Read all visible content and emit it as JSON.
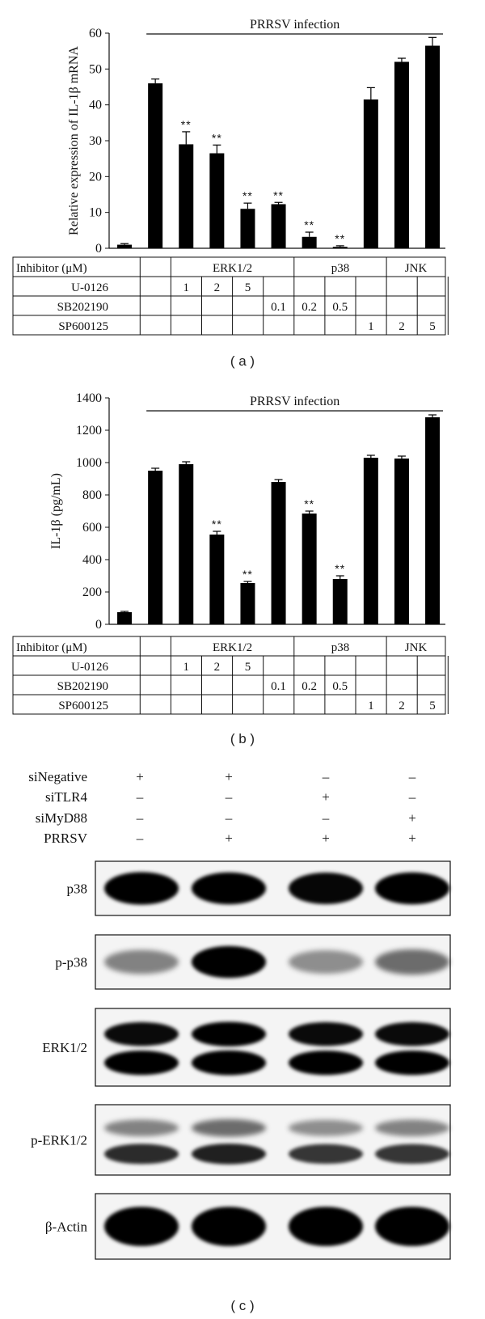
{
  "chart_data": [
    {
      "type": "bar",
      "panel_label": "( a )",
      "ylabel": "Relative expression of IL-1β mRNA",
      "ylim": [
        0,
        60
      ],
      "yticks": [
        "0",
        "10",
        "20",
        "30",
        "40",
        "50",
        "60"
      ],
      "header_text": "PRRSV infection",
      "values": [
        1,
        46,
        29,
        26.5,
        11,
        12.3,
        3.2,
        0.4,
        41.5,
        52,
        56.5
      ],
      "errors": [
        0.3,
        1.2,
        3.5,
        2.3,
        1.6,
        0.5,
        1.3,
        0.3,
        3.3,
        1.0,
        2.3
      ],
      "significance": [
        "",
        "",
        "**",
        "**",
        "**",
        "**",
        "**",
        "**",
        "",
        "",
        ""
      ],
      "table": {
        "header_label": "Inhibitor (μM)",
        "groups": [
          "ERK1/2",
          "p38",
          "JNK"
        ],
        "rows": [
          {
            "label": "U-0126",
            "cells": [
              "",
              "",
              "1",
              "2",
              "5",
              "",
              "",
              "",
              "",
              "",
              ""
            ]
          },
          {
            "label": "SB202190",
            "cells": [
              "",
              "",
              "",
              "",
              "",
              "0.1",
              "0.2",
              "0.5",
              "",
              "",
              ""
            ]
          },
          {
            "label": "SP600125",
            "cells": [
              "",
              "",
              "",
              "",
              "",
              "",
              "",
              "",
              "1",
              "2",
              "5"
            ]
          }
        ]
      }
    },
    {
      "type": "bar",
      "panel_label": "( b )",
      "ylabel": "IL-1β (pg/mL)",
      "ylim": [
        0,
        1400
      ],
      "yticks": [
        "0",
        "200",
        "400",
        "600",
        "800",
        "1000",
        "1200",
        "1400"
      ],
      "header_text": "PRRSV infection",
      "values": [
        75,
        950,
        990,
        555,
        255,
        880,
        685,
        280,
        1030,
        1025,
        1280
      ],
      "errors": [
        5,
        15,
        15,
        20,
        10,
        15,
        15,
        20,
        15,
        15,
        15
      ],
      "significance": [
        "",
        "",
        "",
        "**",
        "**",
        "",
        "**",
        "**",
        "",
        "",
        ""
      ],
      "table": {
        "header_label": "Inhibitor (μM)",
        "groups": [
          "ERK1/2",
          "p38",
          "JNK"
        ],
        "rows": [
          {
            "label": "U-0126",
            "cells": [
              "",
              "",
              "1",
              "2",
              "5",
              "",
              "",
              "",
              "",
              "",
              ""
            ]
          },
          {
            "label": "SB202190",
            "cells": [
              "",
              "",
              "",
              "",
              "",
              "0.1",
              "0.2",
              "0.5",
              "",
              "",
              ""
            ]
          },
          {
            "label": "SP600125",
            "cells": [
              "",
              "",
              "",
              "",
              "",
              "",
              "",
              "",
              "1",
              "2",
              "5"
            ]
          }
        ]
      }
    }
  ],
  "western_blot": {
    "panel_label": "( c )",
    "conditions": [
      {
        "label": "siNegative",
        "signs": [
          "+",
          "+",
          "–",
          "–"
        ]
      },
      {
        "label": "siTLR4",
        "signs": [
          "–",
          "–",
          "+",
          "–"
        ]
      },
      {
        "label": "siMyD88",
        "signs": [
          "–",
          "–",
          "–",
          "+"
        ]
      },
      {
        "label": "PRRSV",
        "signs": [
          "–",
          "+",
          "+",
          "+"
        ]
      }
    ],
    "blots": [
      {
        "label": "p38",
        "bands": [
          [
            1.0,
            0.95,
            0.92,
            0.95
          ]
        ]
      },
      {
        "label": "p-p38",
        "bands": [
          [
            0.35,
            0.95,
            0.3,
            0.45
          ]
        ]
      },
      {
        "label": "ERK1/2",
        "bands": [
          [
            0.9,
            0.98,
            0.9,
            0.9
          ],
          [
            0.95,
            1.0,
            0.95,
            0.95
          ]
        ]
      },
      {
        "label": "p-ERK1/2",
        "bands": [
          [
            0.35,
            0.45,
            0.3,
            0.35
          ],
          [
            0.75,
            0.8,
            0.7,
            0.7
          ]
        ]
      },
      {
        "label": "β-Actin",
        "bands": [
          [
            1.0,
            1.0,
            1.0,
            1.0
          ]
        ]
      }
    ]
  }
}
